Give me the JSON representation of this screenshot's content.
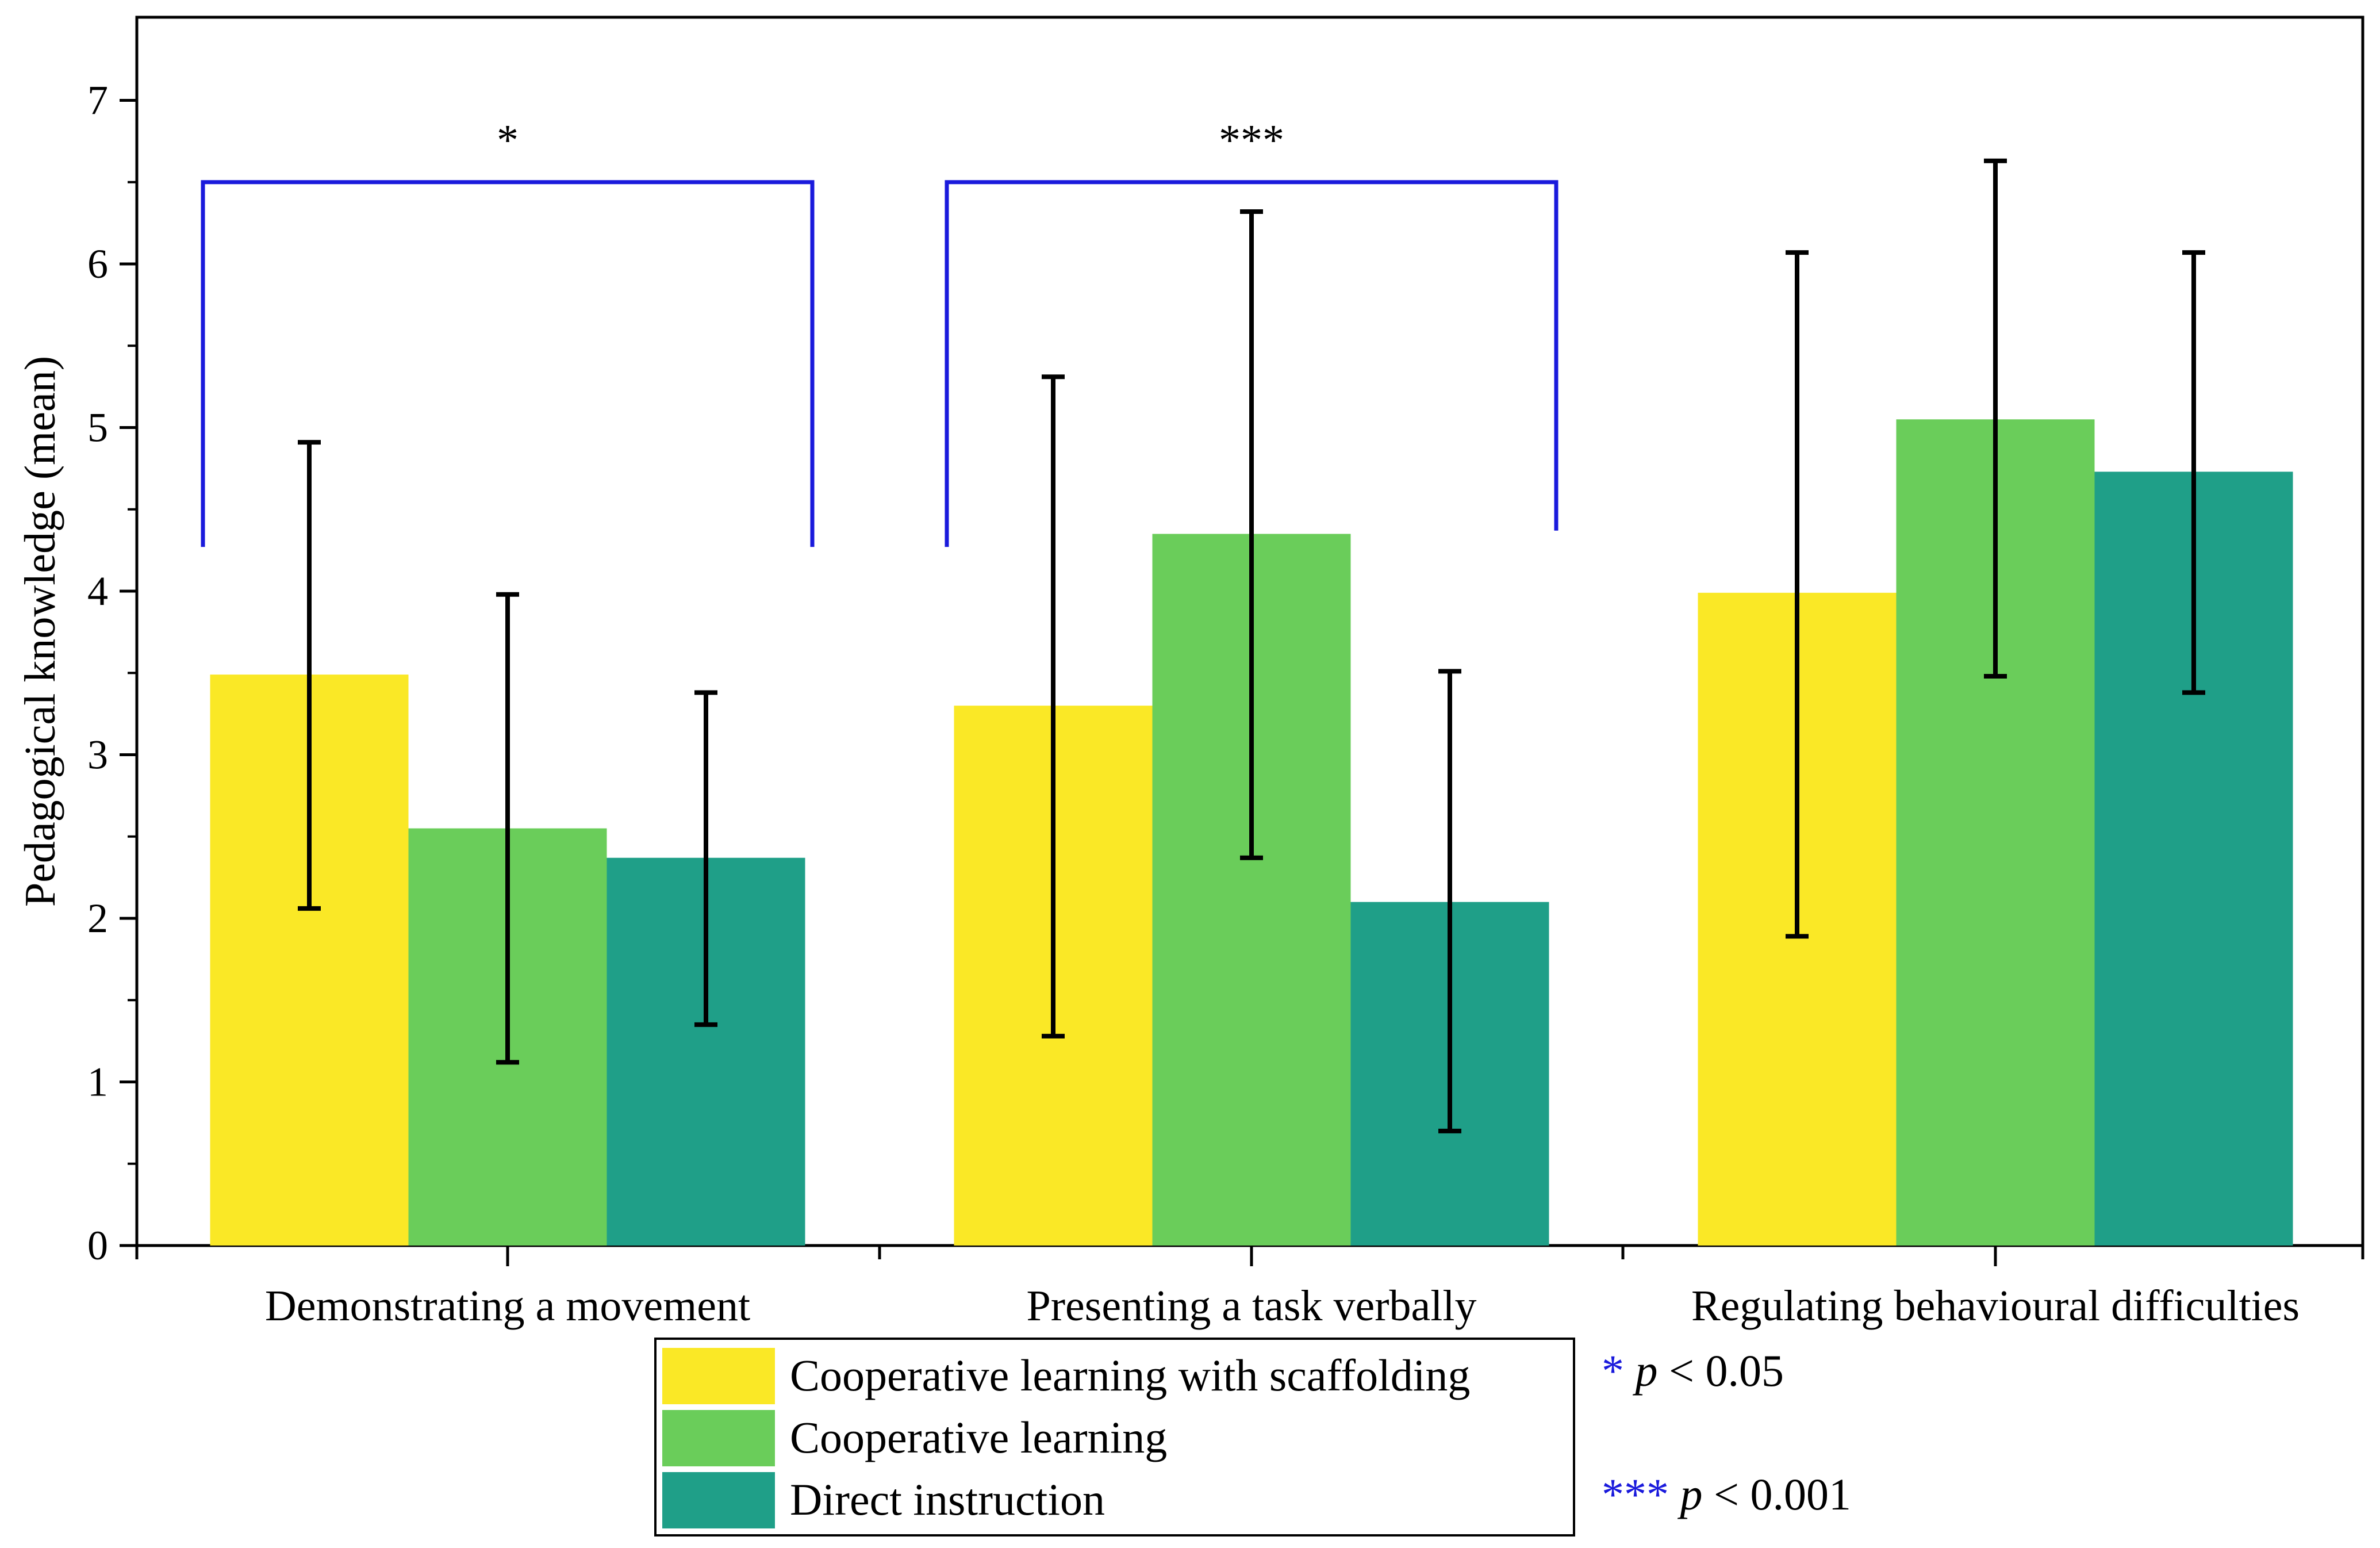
{
  "chart_data": {
    "type": "bar",
    "ylabel": "Pedagogical knowledge (mean)",
    "xlabel": "",
    "ylim": [
      0,
      7.5
    ],
    "yticks": [
      "0",
      "1",
      "2",
      "3",
      "4",
      "5",
      "6",
      "7"
    ],
    "categories": [
      "Demonstrating a movement",
      "Presenting a task verbally",
      "Regulating behavioural difficulties"
    ],
    "series": [
      {
        "name": "Cooperative learning with scaffolding",
        "color": "#fae826",
        "values": [
          3.49,
          3.3,
          3.99
        ],
        "err_low": [
          2.06,
          1.28,
          1.89
        ],
        "err_high": [
          4.91,
          5.31,
          6.07
        ]
      },
      {
        "name": "Cooperative learning",
        "color": "#6acd5a",
        "values": [
          2.55,
          4.35,
          5.05
        ],
        "err_low": [
          1.12,
          2.37,
          3.48
        ],
        "err_high": [
          3.98,
          6.32,
          6.63
        ]
      },
      {
        "name": "Direct instruction",
        "color": "#1f9f88",
        "values": [
          2.37,
          2.1,
          4.73
        ],
        "err_low": [
          1.35,
          0.7,
          3.38
        ],
        "err_high": [
          3.38,
          3.51,
          6.07
        ]
      }
    ],
    "significance": [
      {
        "category": "Demonstrating a movement",
        "label": "*"
      },
      {
        "category": "Presenting a task verbally",
        "label": "***"
      }
    ],
    "significance_color": "#1a1adc",
    "legend_position": "bottom-center",
    "significance_key": [
      {
        "stars": "*",
        "p": "p",
        "text": " < 0.05"
      },
      {
        "stars": "***",
        "p": "p",
        "text": " < 0.001"
      }
    ]
  }
}
